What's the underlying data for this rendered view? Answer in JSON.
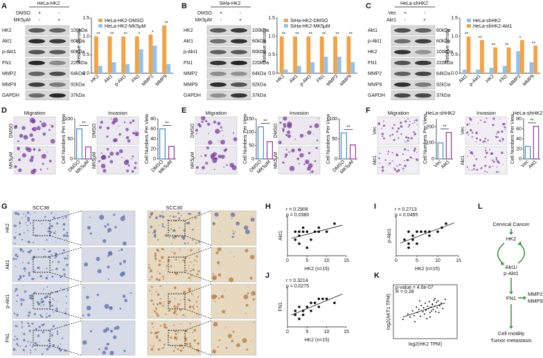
{
  "letters": [
    "A",
    "B",
    "C",
    "D",
    "E",
    "F",
    "G",
    "H",
    "I",
    "J",
    "K",
    "L"
  ],
  "blots": [
    {
      "cell": "HeLa-HK2",
      "treatments": [
        {
          "name": "DMSO",
          "signs": [
            "+",
            "-"
          ]
        },
        {
          "name": "MK5μM",
          "signs": [
            "-",
            "+"
          ]
        }
      ],
      "proteins": [
        "HK2",
        "Akt1",
        "p-Akt1",
        "FN1",
        "MMP2",
        "MMP9",
        "GAPDH"
      ],
      "sizes": [
        "100kDa",
        "60kDa",
        "60kDa",
        "220kDa",
        "64kDa",
        "92kDa",
        "37kDa"
      ]
    },
    {
      "cell": "SiHa-HK2",
      "treatments": [
        {
          "name": "DMSO",
          "signs": [
            "+",
            "-"
          ]
        },
        {
          "name": "MK5μM",
          "signs": [
            "-",
            "+"
          ]
        }
      ],
      "proteins": [
        "HK2",
        "Akt1",
        "p-Akt1",
        "FN1",
        "MMP2",
        "MMP9",
        "GAPDH"
      ],
      "sizes": [
        "100kDa",
        "60kDa",
        "60kDa",
        "220kDa",
        "64kDa",
        "92kDa",
        "37kDa"
      ]
    },
    {
      "cell": "HeLa-shHK2",
      "treatments": [
        {
          "name": "Vec",
          "signs": [
            "+",
            "-"
          ]
        },
        {
          "name": "Akt1",
          "signs": [
            "-",
            "+"
          ]
        }
      ],
      "proteins": [
        "Akt1",
        "p-Akt1",
        "HK2",
        "FN1",
        "MMP2",
        "MMP9",
        "GAPDH"
      ],
      "sizes": [
        "60kDa",
        "60kDa",
        "100kDa",
        "220kDa",
        "64kDa",
        "92kDa",
        "37kDa"
      ]
    }
  ],
  "assays": [
    {
      "images": [
        "Migration",
        "Invasion"
      ],
      "rows": [
        "DMSO",
        "MK5μM"
      ]
    },
    {
      "images": [
        "Migration",
        "Invasion"
      ],
      "rows": [
        "DMSO",
        "MK5μM"
      ]
    },
    {
      "images": [
        "Migration",
        "Invasion"
      ],
      "rows": [
        "Vec",
        "Akt1"
      ]
    }
  ],
  "ihc": {
    "columns": [
      "SCC38",
      "SCC30"
    ],
    "rows": [
      "HK2",
      "Akt1",
      "p-Akt1",
      "FN1"
    ]
  },
  "model": {
    "top": "Cervical Cancer",
    "hk2": "HK2",
    "akt": [
      "Akt1/",
      "p-Akt1"
    ],
    "fn1": "FN1",
    "mmp": [
      "MMP2",
      "MMP9"
    ],
    "outcome": [
      "Cell motility",
      "Tumor metastasis"
    ]
  },
  "chart_data": [
    {
      "type": "bar",
      "ylabel": "Relative density",
      "categories": [
        "HK2",
        "Akt1",
        "p-Akt1",
        "FN1",
        "MMP2",
        "MMP9"
      ],
      "series": [
        {
          "name": "HeLa-HK2-DMSO",
          "color": "#f5a243",
          "values": [
            1,
            1,
            1,
            1,
            1.05,
            1.3
          ]
        },
        {
          "name": "HeLa-HK2-MK5μM",
          "color": "#8fc3ef",
          "values": [
            0.2,
            0.3,
            0.25,
            0.65,
            0.75,
            0.25
          ]
        }
      ],
      "significance": [
        "**",
        "**",
        "**",
        "*",
        "*",
        "**"
      ],
      "ylim": [
        0,
        1.5
      ],
      "yticks": [
        {
          "value": 0,
          "label": "0.0"
        },
        {
          "value": 0.5,
          "label": "0.5"
        },
        {
          "value": 1,
          "label": "1.0"
        },
        {
          "value": 1.5,
          "label": "1.5"
        }
      ]
    },
    {
      "type": "bar",
      "ylabel": "Relative density",
      "categories": [
        "HK2",
        "Akt1",
        "p-Akt1",
        "FN1",
        "MMP2",
        "MMP9"
      ],
      "series": [
        {
          "name": "SiHa-HK2-DMSO",
          "color": "#f5a243",
          "values": [
            1,
            1,
            1,
            1,
            1,
            1
          ]
        },
        {
          "name": "SiHa-HK2-MK5μM",
          "color": "#8fc3ef",
          "values": [
            0.1,
            0.2,
            0.3,
            0.45,
            0.45,
            0.3
          ]
        }
      ],
      "significance": [
        "**",
        "**",
        "**",
        "**",
        "**",
        "**"
      ],
      "ylim": [
        0,
        1.5
      ],
      "yticks": [
        {
          "value": 0,
          "label": "0.0"
        },
        {
          "value": 0.5,
          "label": "0.5"
        },
        {
          "value": 1,
          "label": "1.0"
        },
        {
          "value": 1.5,
          "label": "1.5"
        }
      ]
    },
    {
      "type": "bar",
      "ylabel": "Relative density",
      "categories": [
        "Akt1",
        "p-Akt1",
        "HK2",
        "FN1",
        "MMP2",
        "MMP9"
      ],
      "series": [
        {
          "name": "HeLa-shHK2",
          "color": "#8fc3ef",
          "values": [
            0.1,
            0.1,
            0.15,
            0.2,
            0.6,
            0.3
          ]
        },
        {
          "name": "HeLa-shHK2-Akt1",
          "color": "#f5a243",
          "values": [
            1,
            0.9,
            0.7,
            0.7,
            0.9,
            0.75
          ]
        }
      ],
      "significance": [
        "**",
        "**",
        "**",
        "**",
        "*",
        "**"
      ],
      "ylim": [
        0,
        1.5
      ],
      "yticks": [
        {
          "value": 0,
          "label": "0.0"
        },
        {
          "value": 0.5,
          "label": "0.5"
        },
        {
          "value": 1,
          "label": "1.0"
        },
        {
          "value": 1.5,
          "label": "1.5"
        }
      ]
    },
    {
      "type": "column",
      "ylabel": "Cell Numbers Per View",
      "categories": [
        "DMSO",
        "MK5μM"
      ],
      "values": [
        75,
        30
      ],
      "colors": [
        "#4a90d9",
        "#9b3fa8"
      ],
      "significance": "**",
      "ylim": [
        0,
        100
      ],
      "yticks": [
        0,
        50,
        100
      ]
    },
    {
      "type": "column",
      "ylabel": "Cell Numbers Per View",
      "categories": [
        "DMSO",
        "MK5μM"
      ],
      "values": [
        60,
        25
      ],
      "colors": [
        "#4a90d9",
        "#9b3fa8"
      ],
      "significance": "**",
      "ylim": [
        0,
        80
      ],
      "yticks": [
        0,
        20,
        40,
        60,
        80
      ]
    },
    {
      "type": "column",
      "ylabel": "Cell Numbers Per View",
      "categories": [
        "DMSO",
        "MK5μM"
      ],
      "values": [
        120,
        65
      ],
      "colors": [
        "#4a90d9",
        "#9b3fa8"
      ],
      "significance": "**",
      "ylim": [
        0,
        150
      ],
      "yticks": [
        0,
        50,
        100,
        150
      ]
    },
    {
      "type": "column",
      "ylabel": "Cell Numbers Per View",
      "categories": [
        "DMSO",
        "MK5μM"
      ],
      "values": [
        65,
        35
      ],
      "colors": [
        "#4a90d9",
        "#9b3fa8"
      ],
      "significance": "**",
      "ylim": [
        0,
        100
      ],
      "yticks": [
        0,
        50,
        100
      ]
    },
    {
      "type": "column",
      "title": "HeLa-shHK2",
      "ylabel": "Cell Numbers Per View",
      "categories": [
        "Vec",
        "Akt1"
      ],
      "values": [
        100,
        165
      ],
      "colors": [
        "#4a90d9",
        "#9b3fa8"
      ],
      "significance": "**",
      "ylim": [
        0,
        250
      ],
      "yticks": [
        0,
        100,
        200
      ]
    },
    {
      "type": "column",
      "title": "HeLa-shHK2",
      "ylabel": "Cell Numbers Per View",
      "categories": [
        "Vec",
        "Akt1"
      ],
      "values": [
        25,
        65
      ],
      "colors": [
        "#4a90d9",
        "#9b3fa8"
      ],
      "significance": "**",
      "ylim": [
        0,
        80
      ],
      "yticks": [
        0,
        20,
        40,
        60,
        80
      ]
    },
    {
      "type": "scatter",
      "stats": [
        "r = 0.2908",
        "p = 0.0380"
      ],
      "xlabel": "HK2 (n=15)",
      "ylabel": "Akt1",
      "xlim": [
        0,
        15
      ],
      "xticks": [
        0,
        5,
        10,
        15
      ],
      "ylim": [
        0,
        10
      ],
      "x": [
        2,
        2,
        3,
        3,
        3,
        4,
        4,
        5,
        5,
        6,
        7,
        8,
        8,
        10,
        12
      ],
      "values": [
        4,
        6,
        3,
        6,
        5,
        6,
        7,
        2,
        6,
        4,
        6,
        6,
        7,
        6,
        8
      ]
    },
    {
      "type": "scatter",
      "stats": [
        "r = 0.2713",
        "p = 0.0465"
      ],
      "xlabel": "HK2 (n=15)",
      "ylabel": "p-Akt1",
      "xlim": [
        0,
        15
      ],
      "xticks": [
        0,
        5,
        10,
        15
      ],
      "ylim": [
        0,
        10
      ],
      "x": [
        2,
        3,
        3,
        3,
        4,
        4,
        5,
        5,
        6,
        7,
        8,
        8,
        10,
        11,
        12
      ],
      "values": [
        4,
        3,
        6,
        2,
        4,
        5,
        3,
        6,
        6,
        6,
        5,
        6,
        6,
        7,
        8
      ]
    },
    {
      "type": "scatter",
      "stats": [
        "r = 0.3214",
        "p = 0.0275"
      ],
      "xlabel": "HK2 (n=15)",
      "ylabel": "FN1",
      "xlim": [
        0,
        15
      ],
      "xticks": [
        0,
        5,
        10,
        15
      ],
      "ylim": [
        0,
        10
      ],
      "x": [
        2,
        2,
        3,
        3,
        4,
        4,
        5,
        6,
        6,
        7,
        8,
        8,
        9,
        10,
        12
      ],
      "values": [
        3,
        4,
        2,
        5,
        4,
        3,
        5,
        6,
        4,
        6,
        7,
        5,
        7,
        7,
        6
      ]
    },
    {
      "type": "scatter",
      "frame": true,
      "stats": [
        "p-value = 4.6e-07",
        "R = 0.28"
      ],
      "xlabel": "log2(HK2 TPM)",
      "ylabel": "log2(AKT1 TPM)",
      "xlim": [
        0,
        8
      ],
      "ylim": [
        1,
        8
      ],
      "x": [
        1.2,
        1.8,
        2.1,
        2.4,
        2.6,
        2.9,
        3.0,
        3.2,
        3.4,
        3.5,
        3.7,
        3.8,
        3.9,
        4.0,
        4.1,
        4.2,
        4.3,
        4.4,
        4.5,
        4.6,
        4.7,
        4.8,
        4.9,
        5.0,
        5.1,
        5.2,
        5.3,
        5.4,
        5.5,
        5.6,
        5.8,
        6.0,
        6.2,
        6.5,
        3.3,
        4.6,
        5.2,
        2.7,
        4.9,
        5.7
      ],
      "values": [
        3.5,
        4.2,
        3.8,
        4.6,
        4.0,
        5.1,
        4.4,
        4.8,
        3.9,
        5.3,
        4.5,
        5.0,
        4.2,
        5.6,
        4.7,
        3.6,
        5.2,
        4.9,
        5.8,
        4.4,
        5.1,
        4.6,
        5.5,
        4.8,
        6.0,
        5.2,
        4.5,
        5.7,
        5.0,
        5.9,
        5.3,
        5.6,
        4.9,
        6.1,
        5.9,
        3.8,
        6.2,
        3.2,
        5.4,
        4.4
      ]
    }
  ]
}
